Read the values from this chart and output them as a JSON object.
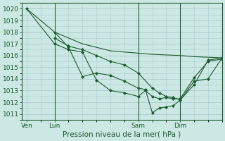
{
  "background_color": "#cce8e4",
  "grid_color": "#aacccc",
  "line_color": "#1a5c2a",
  "ylabel_ticks": [
    1011,
    1012,
    1013,
    1014,
    1015,
    1016,
    1017,
    1018,
    1019,
    1020
  ],
  "ylim": [
    1010.5,
    1020.5
  ],
  "xlabel": "Pression niveau de la mer( hPa )",
  "xtick_labels": [
    "Ven",
    "Lun",
    "Sam",
    "Dim"
  ],
  "xtick_positions": [
    0,
    24,
    96,
    132
  ],
  "xlim": [
    -4,
    168
  ],
  "series": [
    {
      "x": [
        0,
        24,
        48,
        72,
        96,
        108,
        120,
        132,
        144,
        156,
        168
      ],
      "y": [
        1020,
        1018,
        1017.0,
        1016.4,
        1016.2,
        1016.1,
        1016.05,
        1016.0,
        1015.9,
        1015.85,
        1015.8
      ],
      "marker": null,
      "linestyle": "-"
    },
    {
      "x": [
        24,
        36,
        48,
        60,
        72,
        84,
        96,
        108,
        114,
        120,
        126,
        132,
        144,
        156,
        168
      ],
      "y": [
        1017.5,
        1016.8,
        1016.5,
        1016.0,
        1015.5,
        1015.2,
        1014.5,
        1013.2,
        1012.8,
        1012.5,
        1012.4,
        1012.2,
        1013.8,
        1014.0,
        1015.8
      ],
      "marker": "D",
      "linestyle": "-"
    },
    {
      "x": [
        24,
        36,
        48,
        60,
        72,
        84,
        96,
        102,
        108,
        114,
        120,
        126,
        132,
        144,
        156,
        168
      ],
      "y": [
        1018,
        1016.7,
        1014.2,
        1014.5,
        1014.3,
        1013.8,
        1013.2,
        1013.1,
        1011.1,
        1011.5,
        1011.6,
        1011.7,
        1012.2,
        1013.5,
        1015.6,
        1015.8
      ],
      "marker": "D",
      "linestyle": "-"
    },
    {
      "x": [
        0,
        24,
        36,
        48,
        60,
        72,
        84,
        96,
        102,
        108,
        114,
        120,
        126,
        132,
        144,
        156,
        168
      ],
      "y": [
        1020,
        1017.0,
        1016.5,
        1016.3,
        1013.9,
        1013.0,
        1012.8,
        1012.5,
        1013.0,
        1012.5,
        1012.3,
        1012.4,
        1012.3,
        1012.3,
        1014.1,
        1015.5,
        1015.7
      ],
      "marker": "D",
      "linestyle": "-"
    }
  ],
  "vlines": [
    24,
    96,
    132
  ],
  "tick_fontsize": 6.5,
  "xlabel_fontsize": 7.5,
  "marker_size": 2.0
}
